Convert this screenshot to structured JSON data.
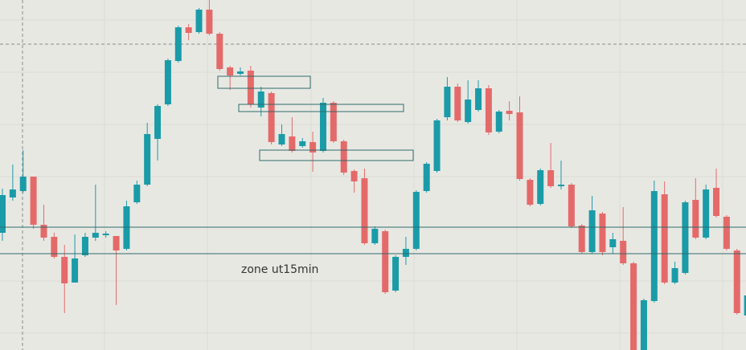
{
  "chart_data": {
    "type": "candlestick",
    "annotation": "zone ut15min",
    "up_color": "#1a9ba8",
    "down_color": "#e46a6a",
    "ylim": [
      0,
      436
    ],
    "open": [
      146,
      190,
      198,
      216,
      156,
      141,
      116,
      84,
      118,
      140,
      143,
      142,
      126,
      184,
      206,
      263,
      306,
      360,
      402,
      396,
      424,
      394,
      352,
      344,
      348,
      302,
      320,
      256,
      266,
      254,
      259,
      248,
      308,
      260,
      223,
      214,
      133,
      148,
      74,
      116,
      126,
      198,
      223,
      290,
      328,
      284,
      299,
      326,
      272,
      298,
      296,
      212,
      182,
      224,
      204,
      206,
      155,
      122,
      170,
      128,
      136,
      108,
      0,
      61,
      194,
      84,
      96,
      187,
      140,
      202,
      166,
      124,
      43
    ],
    "high": [
      201,
      231,
      249,
      216,
      181,
      146,
      131,
      144,
      146,
      206,
      148,
      142,
      186,
      211,
      283,
      306,
      363,
      404,
      406,
      426,
      436,
      396,
      354,
      352,
      354,
      328,
      322,
      281,
      290,
      264,
      272,
      314,
      310,
      262,
      225,
      226,
      154,
      150,
      118,
      141,
      199,
      234,
      288,
      340,
      332,
      336,
      336,
      330,
      299,
      310,
      316,
      214,
      226,
      258,
      236,
      208,
      157,
      192,
      172,
      146,
      178,
      110,
      64,
      211,
      210,
      110,
      186,
      214,
      206,
      226,
      168,
      126,
      86
    ],
    "low": [
      136,
      186,
      196,
      151,
      136,
      114,
      46,
      84,
      116,
      136,
      140,
      56,
      124,
      182,
      204,
      236,
      304,
      358,
      386,
      394,
      392,
      348,
      324,
      342,
      302,
      291,
      256,
      254,
      246,
      252,
      222,
      246,
      258,
      218,
      196,
      131,
      131,
      70,
      72,
      106,
      124,
      196,
      221,
      286,
      284,
      282,
      297,
      268,
      270,
      286,
      211,
      179,
      180,
      202,
      200,
      152,
      120,
      120,
      118,
      120,
      106,
      0,
      0,
      59,
      82,
      82,
      94,
      138,
      138,
      165,
      124,
      44,
      41
    ],
    "close": [
      193,
      200,
      216,
      156,
      140,
      116,
      83,
      114,
      141,
      146,
      145,
      124,
      179,
      206,
      269,
      304,
      361,
      402,
      395,
      424,
      394,
      350,
      342,
      347,
      306,
      322,
      259,
      269,
      248,
      260,
      246,
      308,
      260,
      221,
      210,
      133,
      151,
      72,
      116,
      126,
      197,
      232,
      286,
      328,
      286,
      312,
      326,
      271,
      297,
      294,
      213,
      181,
      224,
      204,
      206,
      154,
      122,
      174,
      122,
      138,
      108,
      0,
      62,
      198,
      84,
      102,
      184,
      140,
      200,
      167,
      126,
      46,
      68
    ]
  }
}
